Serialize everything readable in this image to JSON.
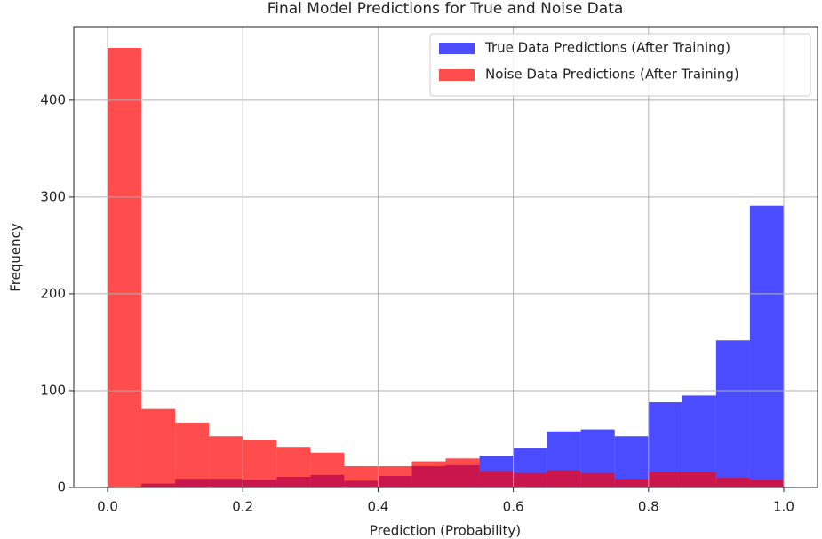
{
  "chart_data": {
    "type": "histogram",
    "title": "Final Model Predictions for True and Noise Data",
    "x_label": "Prediction (Probability)",
    "y_label": "Frequency",
    "bins": [
      0,
      0.05,
      0.1,
      0.15,
      0.2,
      0.25,
      0.3,
      0.35,
      0.4,
      0.45,
      0.5,
      0.55,
      0.6,
      0.65,
      0.7,
      0.75,
      0.8,
      0.85,
      0.9,
      0.95,
      1.0
    ],
    "series": [
      {
        "name": "True Data Predictions (After Training)",
        "color": "#0000ff",
        "alpha": 0.7,
        "values": [
          0,
          4,
          9,
          9,
          8,
          11,
          13,
          7,
          12,
          22,
          23,
          33,
          41,
          58,
          60,
          53,
          88,
          95,
          152,
          291
        ]
      },
      {
        "name": "Noise Data Predictions (After Training)",
        "color": "#ff0000",
        "alpha": 0.7,
        "values": [
          454,
          81,
          67,
          53,
          49,
          42,
          36,
          22,
          22,
          27,
          30,
          17,
          15,
          18,
          15,
          9,
          16,
          16,
          10,
          8
        ]
      }
    ],
    "xlim": [
      -0.05,
      1.05
    ],
    "ylim": [
      0,
      476
    ],
    "xticks": [
      {
        "value": 0,
        "label": "0.0"
      },
      {
        "value": 0.2,
        "label": "0.2"
      },
      {
        "value": 0.4,
        "label": "0.4"
      },
      {
        "value": 0.6,
        "label": "0.6"
      },
      {
        "value": 0.8,
        "label": "0.8"
      },
      {
        "value": 1.0,
        "label": "1.0"
      }
    ],
    "yticks": [
      0,
      100,
      200,
      300,
      400
    ],
    "grid": true,
    "legend": "upper right"
  }
}
